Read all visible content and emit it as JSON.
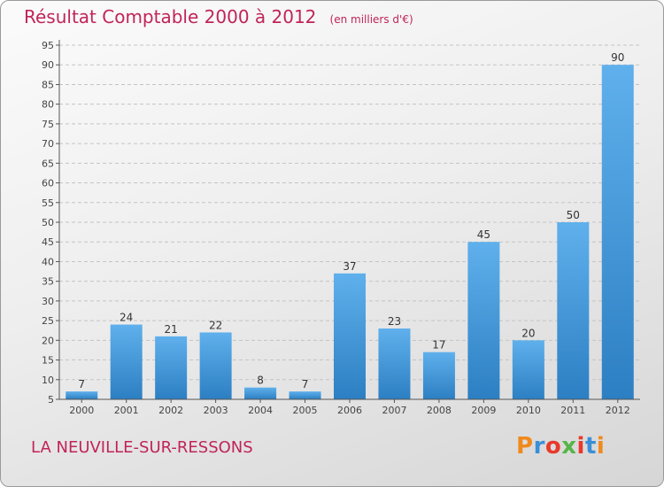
{
  "title": "Résultat Comptable 2000 à 2012",
  "subtitle": "(en milliers d'€)",
  "place": "LA NEUVILLE-SUR-RESSONS",
  "logo": {
    "letters": [
      "P",
      "r",
      "o",
      "x",
      "i",
      "t",
      "i"
    ],
    "colors": [
      "#f08a1c",
      "#3a8fd6",
      "#e8392b",
      "#56b548",
      "#e8392b",
      "#3a8fd6",
      "#f08a1c"
    ]
  },
  "colors": {
    "title": "#c0245a",
    "bar_light": "#5fb0ec",
    "bar_dark": "#2c7fc2"
  },
  "chart_data": {
    "type": "bar",
    "categories": [
      "2000",
      "2001",
      "2002",
      "2003",
      "2004",
      "2005",
      "2006",
      "2007",
      "2008",
      "2009",
      "2010",
      "2011",
      "2012"
    ],
    "values": [
      7,
      24,
      21,
      22,
      8,
      7,
      37,
      23,
      17,
      45,
      20,
      50,
      90
    ],
    "ylim": [
      5,
      95
    ],
    "yticks": [
      5,
      10,
      15,
      20,
      25,
      30,
      35,
      40,
      45,
      50,
      55,
      60,
      65,
      70,
      75,
      80,
      85,
      90,
      95
    ],
    "grid": true
  }
}
